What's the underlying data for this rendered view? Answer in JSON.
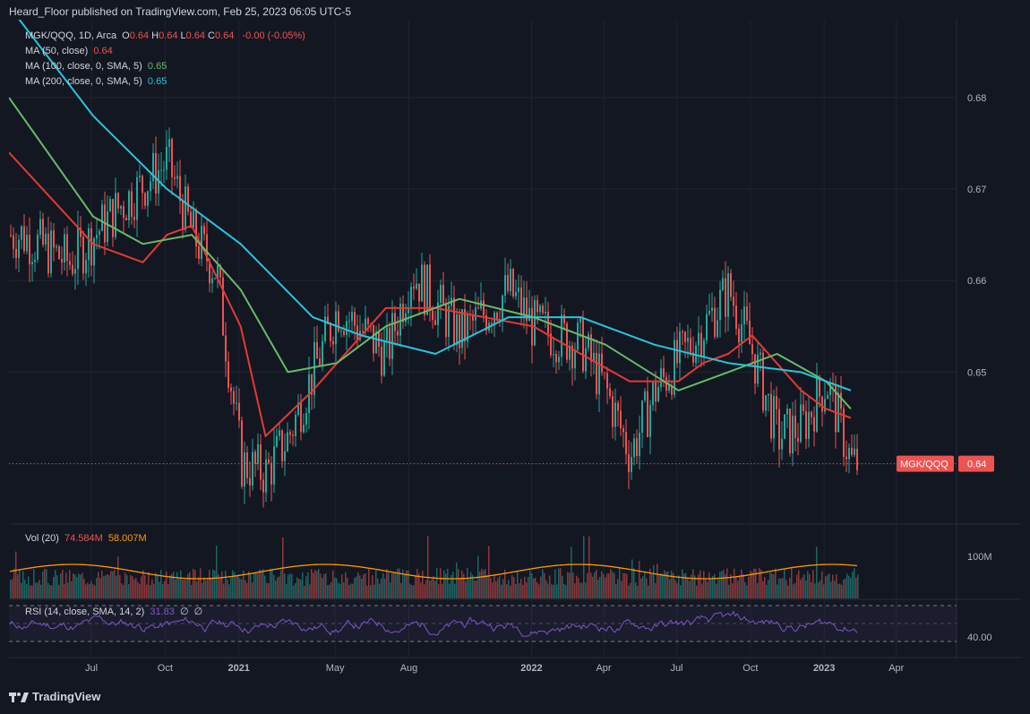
{
  "header": {
    "published": "Heard_Floor published on TradingView.com, Feb 25, 2023 06:05 UTC-5"
  },
  "legend": {
    "symbol": "MGK/QQQ, 1D, Arca",
    "ohlc": [
      {
        "k": "O",
        "v": "0.64"
      },
      {
        "k": "H",
        "v": "0.64"
      },
      {
        "k": "L",
        "v": "0.64"
      },
      {
        "k": "C",
        "v": "0.64"
      }
    ],
    "change": "-0.00 (-0.05%)",
    "ma50": {
      "label": "MA (50, close)",
      "value": "0.64"
    },
    "ma100": {
      "label": "MA (100, close, 0, SMA, 5)",
      "value": "0.65"
    },
    "ma200": {
      "label": "MA (200, close, 0, SMA, 5)",
      "value": "0.65"
    },
    "vol": {
      "label": "Vol (20)",
      "v1": "74.584M",
      "v2": "58.007M"
    },
    "rsi": {
      "label": "RSI (14, close, SMA, 14, 2)",
      "v1": "31.83",
      "v2": "∅",
      "v3": "∅"
    }
  },
  "price_badge": {
    "symbol": "MGK/QQQ",
    "value": "0.64"
  },
  "footer": {
    "brand": "TradingView"
  },
  "colors": {
    "background": "#131722",
    "up": "#26a69a",
    "down": "#ef5350",
    "ma50": "#e53935",
    "ma100": "#66bb6a",
    "ma200": "#26c6da",
    "volma": "#ff9800",
    "rsi": "#7e57c2"
  },
  "chart_data": {
    "type": "line",
    "title": "MGK/QQQ, 1D, Arca",
    "price_axis": {
      "ticks": [
        "0.68",
        "0.67",
        "0.66",
        "0.65",
        "0.64"
      ],
      "values": [
        0.68,
        0.67,
        0.66,
        0.65,
        0.64
      ],
      "range": [
        0.6335,
        0.6885
      ]
    },
    "time_axis": {
      "labels": [
        "Jul",
        "Oct",
        "2021",
        "May",
        "Aug",
        "2022",
        "Apr",
        "Jul",
        "Oct",
        "2023",
        "Apr"
      ]
    },
    "series": [
      {
        "name": "MGK/QQQ",
        "x": [
          "2020-04",
          "2020-06",
          "2020-08",
          "2020-10",
          "2020-11",
          "2020-12",
          "2021-01",
          "2021-02",
          "2021-03",
          "2021-05",
          "2021-07",
          "2021-08",
          "2021-10",
          "2021-12",
          "2022-01",
          "2022-03",
          "2022-04",
          "2022-05",
          "2022-06",
          "2022-08",
          "2022-09",
          "2022-10",
          "2022-11",
          "2022-12",
          "2023-01",
          "2023-02"
        ],
        "y": [
          0.665,
          0.662,
          0.668,
          0.673,
          0.665,
          0.661,
          0.64,
          0.639,
          0.643,
          0.657,
          0.652,
          0.661,
          0.654,
          0.659,
          0.655,
          0.653,
          0.648,
          0.641,
          0.648,
          0.655,
          0.659,
          0.652,
          0.643,
          0.644,
          0.649,
          0.64
        ]
      },
      {
        "name": "MA (50, close)",
        "x": [
          "2020-04",
          "2020-07",
          "2020-09",
          "2020-10",
          "2020-11",
          "2021-01",
          "2021-02",
          "2021-04",
          "2021-07",
          "2021-09",
          "2022-01",
          "2022-03",
          "2022-05",
          "2022-07",
          "2022-08",
          "2022-09",
          "2022-10",
          "2022-12",
          "2023-01",
          "2023-02"
        ],
        "y": [
          0.674,
          0.664,
          0.662,
          0.665,
          0.666,
          0.655,
          0.643,
          0.648,
          0.657,
          0.657,
          0.655,
          0.652,
          0.649,
          0.649,
          0.651,
          0.652,
          0.654,
          0.648,
          0.646,
          0.645
        ]
      },
      {
        "name": "MA (100, close, 0, SMA, 5)",
        "x": [
          "2020-04",
          "2020-07",
          "2020-09",
          "2020-11",
          "2021-01",
          "2021-03",
          "2021-05",
          "2021-07",
          "2021-10",
          "2022-01",
          "2022-04",
          "2022-07",
          "2022-09",
          "2022-11",
          "2023-01",
          "2023-02"
        ],
        "y": [
          0.68,
          0.667,
          0.664,
          0.665,
          0.659,
          0.65,
          0.651,
          0.655,
          0.658,
          0.656,
          0.653,
          0.648,
          0.65,
          0.652,
          0.649,
          0.646
        ]
      },
      {
        "name": "MA (200, close, 0, SMA, 5)",
        "x": [
          "2020-04",
          "2020-07",
          "2020-10",
          "2021-01",
          "2021-04",
          "2021-06",
          "2021-09",
          "2021-12",
          "2022-03",
          "2022-06",
          "2022-09",
          "2022-12",
          "2023-02"
        ],
        "y": [
          0.69,
          0.678,
          0.67,
          0.664,
          0.656,
          0.654,
          0.652,
          0.656,
          0.656,
          0.653,
          0.651,
          0.65,
          0.648
        ]
      }
    ],
    "volume": {
      "axis_label": "100M"
    },
    "rsi": {
      "axis_label": "40.00"
    }
  }
}
